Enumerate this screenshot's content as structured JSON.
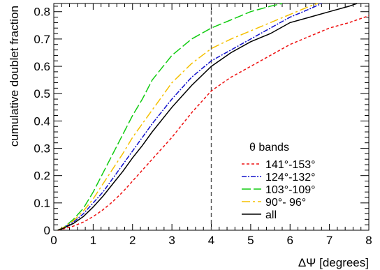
{
  "chart_data": {
    "type": "line",
    "title": "",
    "xlabel": "ΔΨ [degrees]",
    "ylabel": "cumulative doublet fraction",
    "xlim": [
      0,
      8
    ],
    "ylim": [
      0,
      0.83
    ],
    "grid": false,
    "legend_placement": "lower-right",
    "legend_title": "θ bands",
    "x_ticks": [
      0,
      1,
      2,
      3,
      4,
      5,
      6,
      7,
      8
    ],
    "x_tick_labels": [
      "0",
      "1",
      "2",
      "3",
      "4",
      "5",
      "6",
      "7",
      "8"
    ],
    "y_ticks": [
      0,
      0.1,
      0.2,
      0.3,
      0.4,
      0.5,
      0.6,
      0.7,
      0.8
    ],
    "y_tick_labels": [
      "0",
      "0.1",
      "0.2",
      "0.3",
      "0.4",
      "0.5",
      "0.6",
      "0.7",
      "0.8"
    ],
    "reference_line": {
      "x": 4
    },
    "series": [
      {
        "name": "141°-153°",
        "color": "#ee1111",
        "dash": "dashed-short",
        "x": [
          0.1,
          0.25,
          0.5,
          0.75,
          1.0,
          1.25,
          1.5,
          1.75,
          2.0,
          2.25,
          2.5,
          3.0,
          3.5,
          4.0,
          4.5,
          5.0,
          5.5,
          6.0,
          6.5,
          7.0,
          7.5,
          8.0
        ],
        "y": [
          0.0,
          0.005,
          0.015,
          0.03,
          0.05,
          0.075,
          0.105,
          0.14,
          0.18,
          0.22,
          0.26,
          0.34,
          0.43,
          0.51,
          0.56,
          0.6,
          0.64,
          0.68,
          0.71,
          0.74,
          0.76,
          0.785
        ]
      },
      {
        "name": "124°-132°",
        "color": "#1111cc",
        "dash": "dash-dot",
        "x": [
          0.1,
          0.25,
          0.5,
          0.75,
          1.0,
          1.25,
          1.5,
          1.75,
          2.0,
          2.25,
          2.5,
          3.0,
          3.5,
          4.0,
          4.5,
          5.0,
          5.5,
          6.0,
          6.5,
          6.8
        ],
        "y": [
          0.0,
          0.01,
          0.03,
          0.06,
          0.1,
          0.14,
          0.19,
          0.24,
          0.29,
          0.34,
          0.39,
          0.48,
          0.56,
          0.62,
          0.66,
          0.7,
          0.74,
          0.78,
          0.81,
          0.83
        ]
      },
      {
        "name": "103°-109°",
        "color": "#11cc11",
        "dash": "long-dash",
        "x": [
          0.1,
          0.25,
          0.5,
          0.75,
          1.0,
          1.25,
          1.5,
          1.75,
          2.0,
          2.25,
          2.5,
          3.0,
          3.5,
          4.0,
          4.5,
          5.0,
          5.5,
          5.8
        ],
        "y": [
          0.0,
          0.01,
          0.04,
          0.08,
          0.14,
          0.21,
          0.28,
          0.35,
          0.42,
          0.48,
          0.55,
          0.64,
          0.7,
          0.74,
          0.77,
          0.8,
          0.82,
          0.83
        ]
      },
      {
        "name": "90°- 96°",
        "color": "#f5c000",
        "dash": "dash-dot-long",
        "x": [
          0.1,
          0.25,
          0.5,
          0.75,
          1.0,
          1.25,
          1.5,
          1.75,
          2.0,
          2.25,
          2.5,
          3.0,
          3.5,
          4.0,
          4.5,
          5.0,
          5.5,
          6.0,
          6.5,
          6.7
        ],
        "y": [
          0.0,
          0.01,
          0.035,
          0.07,
          0.115,
          0.17,
          0.225,
          0.28,
          0.34,
          0.39,
          0.44,
          0.54,
          0.61,
          0.665,
          0.7,
          0.73,
          0.76,
          0.79,
          0.82,
          0.83
        ]
      },
      {
        "name": "all",
        "color": "#000000",
        "dash": "solid",
        "x": [
          0.1,
          0.25,
          0.5,
          0.75,
          1.0,
          1.25,
          1.5,
          1.75,
          2.0,
          2.25,
          2.5,
          3.0,
          3.5,
          4.0,
          4.5,
          5.0,
          5.5,
          6.0,
          6.5,
          7.0,
          7.5,
          7.7
        ],
        "y": [
          0.0,
          0.008,
          0.025,
          0.05,
          0.085,
          0.125,
          0.17,
          0.215,
          0.265,
          0.31,
          0.36,
          0.45,
          0.53,
          0.6,
          0.65,
          0.69,
          0.72,
          0.76,
          0.78,
          0.8,
          0.82,
          0.83
        ]
      }
    ]
  }
}
